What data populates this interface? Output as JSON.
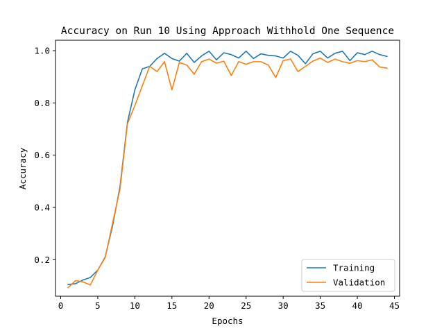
{
  "chart_data": {
    "type": "line",
    "title": "Accuracy on Run 10 Using Approach Withhold One Sequence",
    "xlabel": "Epochs",
    "ylabel": "Accuracy",
    "xlim": [
      -0.7,
      45.7
    ],
    "ylim": [
      0.06,
      1.04
    ],
    "xticks": [
      0,
      5,
      10,
      15,
      20,
      25,
      30,
      35,
      40,
      45
    ],
    "xtick_labels": [
      "0",
      "5",
      "10",
      "15",
      "20",
      "25",
      "30",
      "35",
      "40",
      "45"
    ],
    "yticks": [
      0.2,
      0.4,
      0.6,
      0.8,
      1.0
    ],
    "ytick_labels": [
      "0.2",
      "0.4",
      "0.6",
      "0.8",
      "1.0"
    ],
    "grid": false,
    "legend_position": "bottom-right",
    "x": [
      1,
      2,
      3,
      4,
      5,
      6,
      7,
      8,
      9,
      10,
      11,
      12,
      13,
      14,
      15,
      16,
      17,
      18,
      19,
      20,
      21,
      22,
      23,
      24,
      25,
      26,
      27,
      28,
      29,
      30,
      31,
      32,
      33,
      34,
      35,
      36,
      37,
      38,
      39,
      40,
      41,
      42,
      43,
      44
    ],
    "series": [
      {
        "name": "Training",
        "color": "#1f77b4",
        "values": [
          0.105,
          0.108,
          0.122,
          0.132,
          0.16,
          0.21,
          0.33,
          0.48,
          0.725,
          0.85,
          0.93,
          0.94,
          0.97,
          0.99,
          0.97,
          0.96,
          0.99,
          0.955,
          0.98,
          0.998,
          0.965,
          0.992,
          0.985,
          0.972,
          0.998,
          0.97,
          0.988,
          0.982,
          0.98,
          0.972,
          0.998,
          0.982,
          0.95,
          0.988,
          0.998,
          0.972,
          0.99,
          0.998,
          0.962,
          0.992,
          0.985,
          0.998,
          0.985,
          0.978
        ]
      },
      {
        "name": "Validation",
        "color": "#ff7f0e",
        "values": [
          0.093,
          0.12,
          0.115,
          0.103,
          0.16,
          0.208,
          0.34,
          0.47,
          0.72,
          0.79,
          0.865,
          0.94,
          0.92,
          0.958,
          0.85,
          0.955,
          0.945,
          0.91,
          0.958,
          0.968,
          0.952,
          0.96,
          0.905,
          0.958,
          0.948,
          0.958,
          0.958,
          0.945,
          0.897,
          0.962,
          0.968,
          0.92,
          0.94,
          0.96,
          0.972,
          0.955,
          0.968,
          0.958,
          0.952,
          0.962,
          0.958,
          0.965,
          0.938,
          0.933
        ]
      }
    ]
  }
}
